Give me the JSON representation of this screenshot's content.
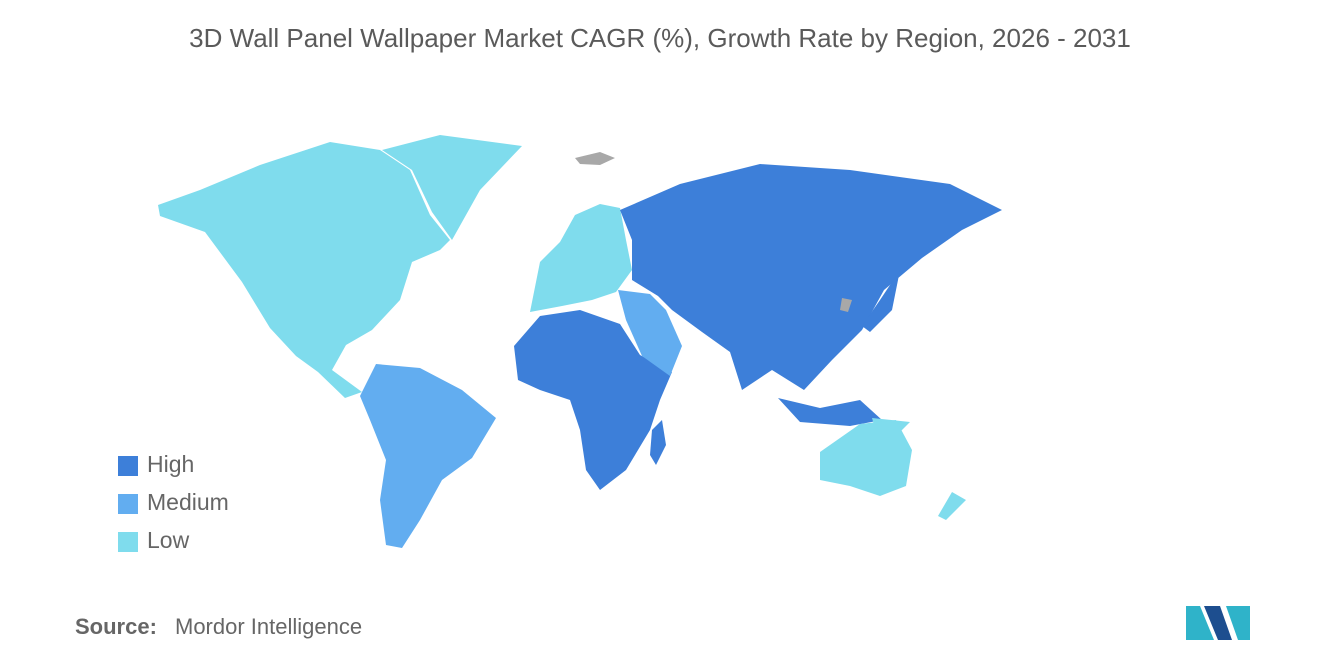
{
  "chart_data": {
    "type": "map",
    "title": "3D Wall Panel Wallpaper Market CAGR (%), Growth Rate by Region, 2026 - 2031",
    "legend": [
      {
        "label": "High",
        "color": "#3d7fd9"
      },
      {
        "label": "Medium",
        "color": "#62adf0"
      },
      {
        "label": "Low",
        "color": "#7fdced"
      }
    ],
    "source_label": "Source:",
    "source": "Mordor Intelligence"
  }
}
